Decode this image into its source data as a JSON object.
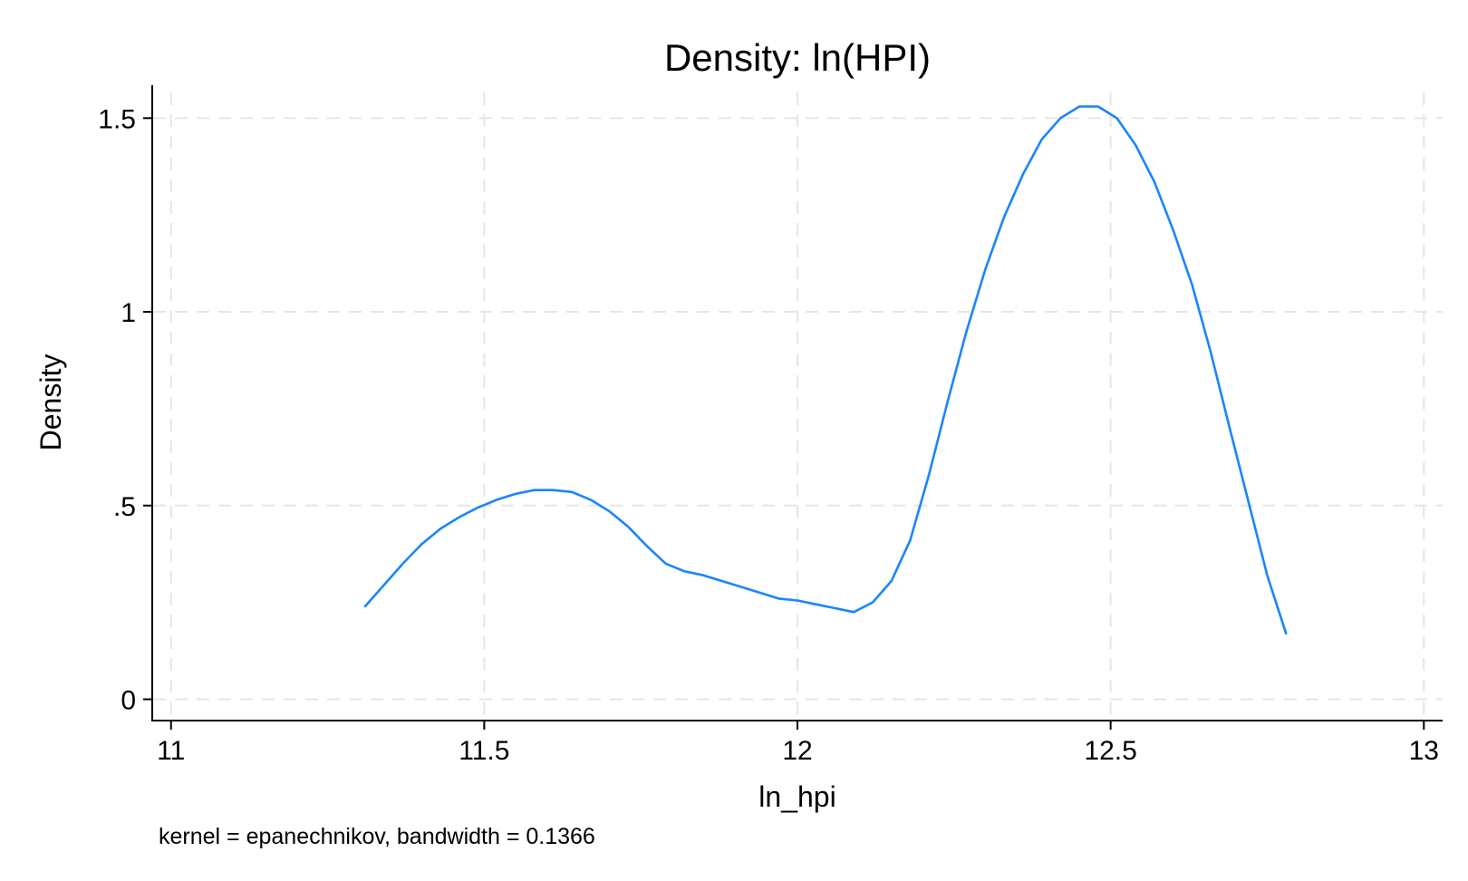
{
  "chart_data": {
    "type": "line",
    "title": "Density: ln(HPI)",
    "xlabel": "ln_hpi",
    "ylabel": "Density",
    "note": "kernel = epanechnikov, bandwidth = 0.1366",
    "xlim": [
      10.97,
      13.03
    ],
    "ylim": [
      -0.055,
      1.585
    ],
    "xticks": [
      11,
      11.5,
      12,
      12.5,
      13
    ],
    "xtick_labels": [
      "11",
      "11.5",
      "12",
      "12.5",
      "13"
    ],
    "yticks": [
      0,
      0.5,
      1,
      1.5
    ],
    "ytick_labels": [
      "0",
      ".5",
      "1",
      "1.5"
    ],
    "grid": true,
    "legend": "none",
    "line_color": "#1a85ff",
    "grid_color": "#e6e6e6",
    "series": [
      {
        "x": [
          11.31,
          11.34,
          11.37,
          11.4,
          11.43,
          11.46,
          11.49,
          11.52,
          11.55,
          11.58,
          11.61,
          11.64,
          11.67,
          11.7,
          11.73,
          11.76,
          11.79,
          11.82,
          11.85,
          11.88,
          11.91,
          11.94,
          11.97,
          12.0,
          12.03,
          12.06,
          12.09,
          12.12,
          12.15,
          12.18,
          12.21,
          12.24,
          12.27,
          12.3,
          12.33,
          12.36,
          12.39,
          12.42,
          12.45,
          12.48,
          12.51,
          12.54,
          12.57,
          12.6,
          12.63,
          12.66,
          12.69,
          12.72,
          12.75,
          12.78
        ],
        "y": [
          0.24,
          0.295,
          0.35,
          0.4,
          0.44,
          0.47,
          0.495,
          0.515,
          0.53,
          0.54,
          0.54,
          0.535,
          0.515,
          0.485,
          0.445,
          0.395,
          0.35,
          0.33,
          0.32,
          0.305,
          0.29,
          0.275,
          0.26,
          0.255,
          0.245,
          0.235,
          0.225,
          0.25,
          0.305,
          0.41,
          0.58,
          0.77,
          0.95,
          1.11,
          1.245,
          1.355,
          1.445,
          1.5,
          1.53,
          1.53,
          1.5,
          1.43,
          1.335,
          1.21,
          1.07,
          0.895,
          0.7,
          0.51,
          0.32,
          0.17
        ]
      }
    ]
  }
}
